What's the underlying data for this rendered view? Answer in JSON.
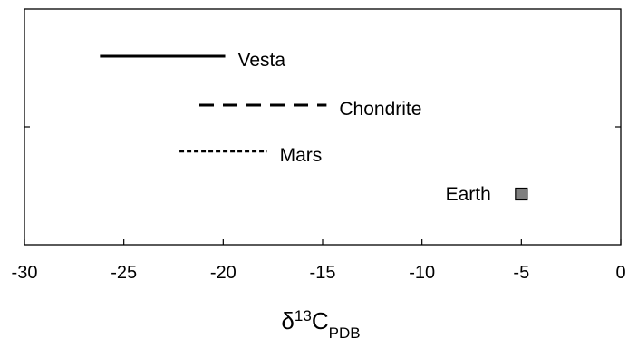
{
  "chart_data": {
    "type": "range",
    "xlim": [
      -30,
      0
    ],
    "xticks": [
      {
        "value": -30,
        "label": "-30"
      },
      {
        "value": -25,
        "label": "-25"
      },
      {
        "value": -20,
        "label": "-20"
      },
      {
        "value": -15,
        "label": "-15"
      },
      {
        "value": -10,
        "label": "-10"
      },
      {
        "value": -5,
        "label": "-5"
      },
      {
        "value": 0,
        "label": "0"
      }
    ],
    "xlabel": {
      "main": "δ",
      "sup": "13",
      "base": "C",
      "sub": "PDB"
    },
    "grid": false,
    "series": [
      {
        "name": "Vesta",
        "kind": "range",
        "x_min": -26.2,
        "x_max": -19.9,
        "row": 1,
        "line_style": "solid"
      },
      {
        "name": "Chondrite",
        "kind": "range",
        "x_min": -21.2,
        "x_max": -14.8,
        "row": 2,
        "line_style": "dashed"
      },
      {
        "name": "Mars",
        "kind": "range",
        "x_min": -22.2,
        "x_max": -17.8,
        "row": 3,
        "line_style": "dotted"
      },
      {
        "name": "Earth",
        "kind": "point",
        "x": -5,
        "row": 4,
        "marker": "square",
        "marker_color": "#7f7f7f"
      }
    ]
  }
}
